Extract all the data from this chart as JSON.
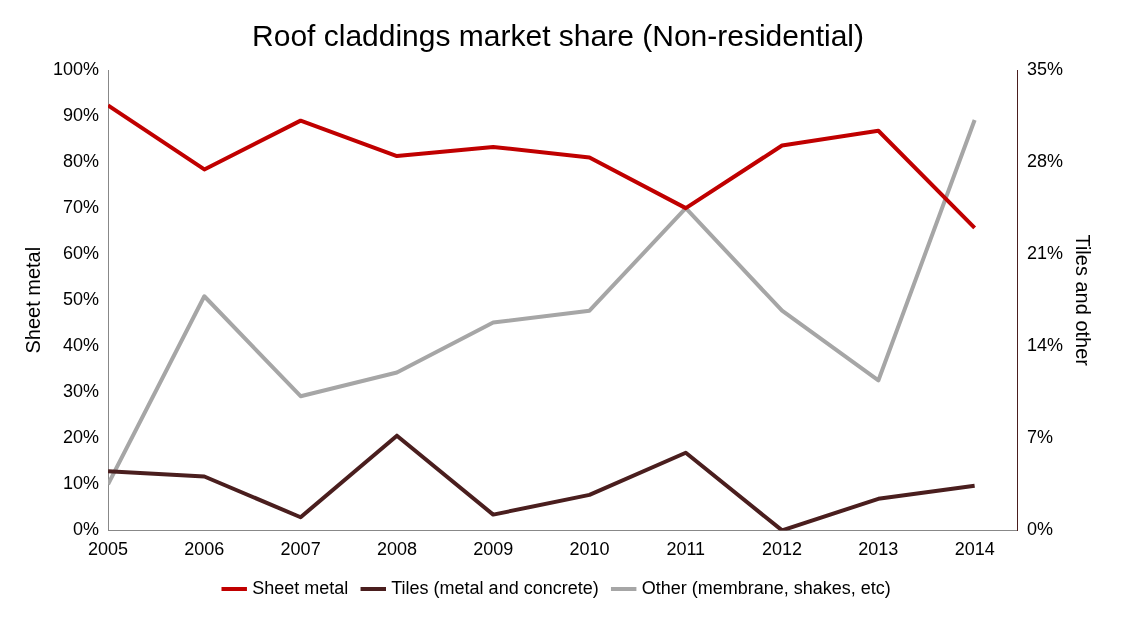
{
  "chart_data": {
    "type": "line",
    "title": "Roof claddings market share (Non-residential)",
    "ylabel": "Sheet metal",
    "y2label": "Tiles and other",
    "x": [
      2005,
      2006,
      2007,
      2008,
      2009,
      2010,
      2011,
      2012,
      2013,
      2014
    ],
    "xlim": [
      2005,
      2014.45
    ],
    "xticks": [
      2005,
      2006,
      2007,
      2008,
      2009,
      2010,
      2011,
      2012,
      2013,
      2014
    ],
    "ylim": [
      0,
      100
    ],
    "yticks": [
      {
        "value": 0,
        "label": "0%"
      },
      {
        "value": 10,
        "label": "10%"
      },
      {
        "value": 20,
        "label": "20%"
      },
      {
        "value": 30,
        "label": "30%"
      },
      {
        "value": 40,
        "label": "40%"
      },
      {
        "value": 50,
        "label": "50%"
      },
      {
        "value": 60,
        "label": "60%"
      },
      {
        "value": 70,
        "label": "70%"
      },
      {
        "value": 80,
        "label": "80%"
      },
      {
        "value": 90,
        "label": "90%"
      },
      {
        "value": 100,
        "label": "100%"
      }
    ],
    "y2lim": [
      0,
      35
    ],
    "y2ticks": [
      {
        "value": 0,
        "label": "0%"
      },
      {
        "value": 7,
        "label": "7%"
      },
      {
        "value": 14,
        "label": "14%"
      },
      {
        "value": 21,
        "label": "21%"
      },
      {
        "value": 28,
        "label": "28%"
      },
      {
        "value": 35,
        "label": "35%"
      }
    ],
    "series": [
      {
        "name": "Sheet metal",
        "color": "#c00000",
        "values": [
          92.3,
          78.4,
          89,
          81.3,
          83.3,
          81,
          70,
          83.6,
          86.8,
          65.7
        ]
      },
      {
        "name": "Tiles (metal and concrete)",
        "color": "#4a1e1e",
        "axis": "y2",
        "values": [
          4.5,
          4.1,
          1,
          7.2,
          1.2,
          2.7,
          5.9,
          0,
          2.4,
          3.4
        ]
      },
      {
        "name": "Other (membrane, shakes, etc)",
        "color": "#a6a6a6",
        "axis": "y2",
        "values": [
          3.5,
          17.8,
          10.2,
          12,
          15.8,
          16.7,
          24.5,
          16.7,
          11.4,
          31.2
        ]
      }
    ],
    "grid": false,
    "legend": "bottom",
    "marker": "none",
    "line_style": "solid"
  }
}
